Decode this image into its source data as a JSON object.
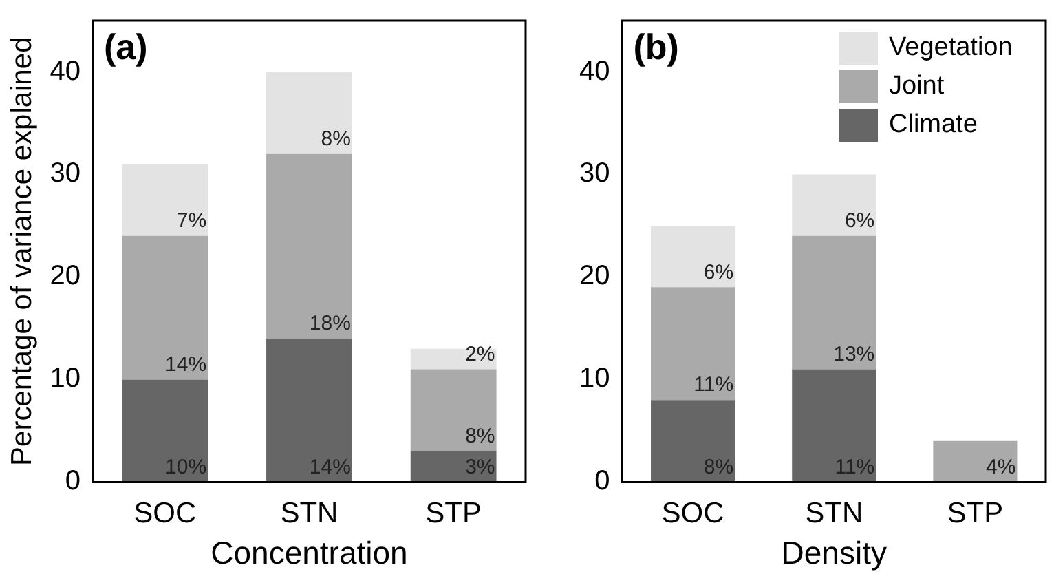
{
  "chart_data": [
    {
      "type": "bar",
      "title": "(a)",
      "xlabel": "Concentration",
      "ylabel": "Percentage of variance explained",
      "categories": [
        "SOC",
        "STN",
        "STP"
      ],
      "stacked": true,
      "ylim": [
        0,
        45
      ],
      "yticks": [
        0,
        10,
        20,
        30,
        40
      ],
      "grid": false,
      "legend": false,
      "series": [
        {
          "color": "#666666",
          "values": [
            10,
            14,
            3
          ],
          "value_labels": [
            "10%",
            "14%",
            "3%"
          ]
        },
        {
          "color": "#aaaaaa",
          "values": [
            14,
            18,
            8
          ],
          "value_labels": [
            "14%",
            "18%",
            "8%"
          ]
        },
        {
          "color": "#e3e3e3",
          "values": [
            7,
            8,
            2
          ],
          "value_labels": [
            "7%",
            "8%",
            "2%"
          ]
        }
      ]
    },
    {
      "type": "bar",
      "title": "(b)",
      "xlabel": "Density",
      "categories": [
        "SOC",
        "STN",
        "STP"
      ],
      "stacked": true,
      "ylim": [
        0,
        45
      ],
      "yticks": [
        0,
        10,
        20,
        30,
        40
      ],
      "grid": false,
      "legend": "top right",
      "series": [
        {
          "name": "Climate",
          "color": "#666666",
          "values": [
            8,
            11,
            null
          ],
          "value_labels": [
            "8%",
            "11%",
            null
          ]
        },
        {
          "name": "Joint",
          "color": "#aaaaaa",
          "values": [
            11,
            13,
            4
          ],
          "value_labels": [
            "11%",
            "13%",
            "4%"
          ]
        },
        {
          "name": "Vegetation",
          "color": "#e3e3e3",
          "values": [
            6,
            6,
            null
          ],
          "value_labels": [
            "6%",
            "6%",
            null
          ]
        }
      ]
    }
  ]
}
